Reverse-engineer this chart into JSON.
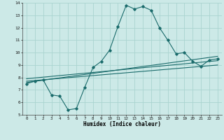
{
  "xlabel": "Humidex (Indice chaleur)",
  "xlim": [
    -0.5,
    23.5
  ],
  "ylim": [
    5,
    14
  ],
  "xticks": [
    0,
    1,
    2,
    3,
    4,
    5,
    6,
    7,
    8,
    9,
    10,
    11,
    12,
    13,
    14,
    15,
    16,
    17,
    18,
    19,
    20,
    21,
    22,
    23
  ],
  "yticks": [
    5,
    6,
    7,
    8,
    9,
    10,
    11,
    12,
    13,
    14
  ],
  "bg_color": "#cce9e7",
  "grid_color": "#aad4d0",
  "line_color": "#1a6b6b",
  "line1_x": [
    0,
    1,
    2,
    3,
    4,
    5,
    6,
    7,
    8,
    9,
    10,
    11,
    12,
    13,
    14,
    15,
    16,
    17,
    18,
    19,
    20,
    21,
    22,
    23
  ],
  "line1_y": [
    7.5,
    7.7,
    7.8,
    6.6,
    6.5,
    5.4,
    5.5,
    7.2,
    8.8,
    9.3,
    10.2,
    12.1,
    13.8,
    13.5,
    13.7,
    13.4,
    12.0,
    11.0,
    9.9,
    10.0,
    9.3,
    8.9,
    9.4,
    9.5
  ],
  "line2_x": [
    0,
    23
  ],
  "line2_y": [
    7.6,
    9.7
  ],
  "line3_x": [
    0,
    23
  ],
  "line3_y": [
    7.9,
    9.35
  ],
  "line4_x": [
    0,
    23
  ],
  "line4_y": [
    7.7,
    9.0
  ]
}
